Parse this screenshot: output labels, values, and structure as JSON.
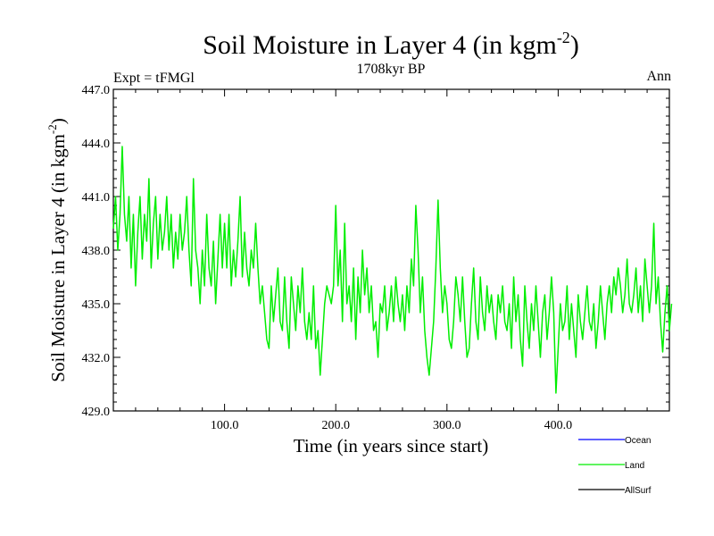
{
  "chart_data": {
    "type": "line",
    "title": "Soil Moisture in Layer 4 (in kgm",
    "title_superscript": "-2",
    "title_close": ")",
    "subtitle_left": "Expt = tFMGl",
    "subtitle_center": "1708kyr BP",
    "subtitle_right": "Ann",
    "xlabel": "Time (in years since start)",
    "ylabel": "Soil Moisture in Layer 4 (in kgm",
    "ylabel_superscript": "-2",
    "ylabel_close": ")",
    "xlim": [
      0,
      500
    ],
    "ylim": [
      429.0,
      447.0
    ],
    "x_ticks": [
      100,
      200,
      300,
      400
    ],
    "x_tick_labels": [
      "100.0",
      "200.0",
      "300.0",
      "400.0"
    ],
    "y_ticks": [
      429,
      432,
      435,
      438,
      441,
      444,
      447
    ],
    "y_tick_labels": [
      "429.0",
      "432.0",
      "435.0",
      "438.0",
      "441.0",
      "444.0",
      "447.0"
    ],
    "series": [
      {
        "name": "Ocean",
        "color": "#0000ff",
        "values": []
      },
      {
        "name": "Land",
        "color": "#00ee00",
        "x_start": 0,
        "x_step": 2,
        "values": [
          439.2,
          441.0,
          438.0,
          440.0,
          443.8,
          440.0,
          438.5,
          441.0,
          437.0,
          440.0,
          436.0,
          439.0,
          441.0,
          437.5,
          440.0,
          438.5,
          442.0,
          437.0,
          439.5,
          441.0,
          437.5,
          440.0,
          438.0,
          439.0,
          441.0,
          438.0,
          440.0,
          437.0,
          439.0,
          437.5,
          440.0,
          438.0,
          439.0,
          441.0,
          438.0,
          436.0,
          442.0,
          438.0,
          437.0,
          435.0,
          438.0,
          436.0,
          440.0,
          437.0,
          436.0,
          438.5,
          435.0,
          437.5,
          440.0,
          437.0,
          439.5,
          437.0,
          440.0,
          436.0,
          438.0,
          436.5,
          438.5,
          441.0,
          436.5,
          439.0,
          437.0,
          436.0,
          438.0,
          437.0,
          439.5,
          437.0,
          435.0,
          436.0,
          434.5,
          433.0,
          432.5,
          436.0,
          434.0,
          435.5,
          437.0,
          434.0,
          433.5,
          436.5,
          434.0,
          432.5,
          436.5,
          435.0,
          433.5,
          436.0,
          434.5,
          437.0,
          434.0,
          433.0,
          434.5,
          433.0,
          436.0,
          432.5,
          433.5,
          431.0,
          433.0,
          435.0,
          436.0,
          435.5,
          435.0,
          436.0,
          440.5,
          436.0,
          438.0,
          434.0,
          439.5,
          435.0,
          436.0,
          434.0,
          437.0,
          433.0,
          436.5,
          434.5,
          438.0,
          435.5,
          437.0,
          434.5,
          436.0,
          433.5,
          434.0,
          432.0,
          435.0,
          434.5,
          436.0,
          433.5,
          434.5,
          436.0,
          434.0,
          436.5,
          435.0,
          434.0,
          435.5,
          433.5,
          436.0,
          434.5,
          437.5,
          436.0,
          440.5,
          438.0,
          434.5,
          436.5,
          433.5,
          432.0,
          431.0,
          432.5,
          434.0,
          437.0,
          440.8,
          437.0,
          434.5,
          436.0,
          435.0,
          433.0,
          432.5,
          434.0,
          436.5,
          435.5,
          434.0,
          436.5,
          434.0,
          432.0,
          432.5,
          435.0,
          437.0,
          434.0,
          433.0,
          436.5,
          434.5,
          433.5,
          436.0,
          434.5,
          435.5,
          434.0,
          433.0,
          435.5,
          434.5,
          436.0,
          434.0,
          433.5,
          435.0,
          432.5,
          436.5,
          434.0,
          435.5,
          433.0,
          431.5,
          436.0,
          434.0,
          432.5,
          435.0,
          433.5,
          436.0,
          434.0,
          432.0,
          434.5,
          435.5,
          433.0,
          434.5,
          436.5,
          434.5,
          430.0,
          432.5,
          435.0,
          433.5,
          434.0,
          436.0,
          433.0,
          435.0,
          433.5,
          432.0,
          435.5,
          434.0,
          433.0,
          434.5,
          436.0,
          434.0,
          433.5,
          435.0,
          432.5,
          434.0,
          436.0,
          434.5,
          433.0,
          435.0,
          436.0,
          434.5,
          436.5,
          435.5,
          437.0,
          436.0,
          434.5,
          435.5,
          437.5,
          435.0,
          434.5,
          435.5,
          437.0,
          434.5,
          436.0,
          434.0,
          437.5,
          436.0,
          434.5,
          436.0,
          439.5,
          435.0,
          436.5,
          434.0,
          432.3,
          434.5,
          436.0,
          433.5,
          435.0
        ]
      },
      {
        "name": "AllSurf",
        "color": "#000000",
        "values": []
      }
    ],
    "legend_position": "bottom-right"
  }
}
